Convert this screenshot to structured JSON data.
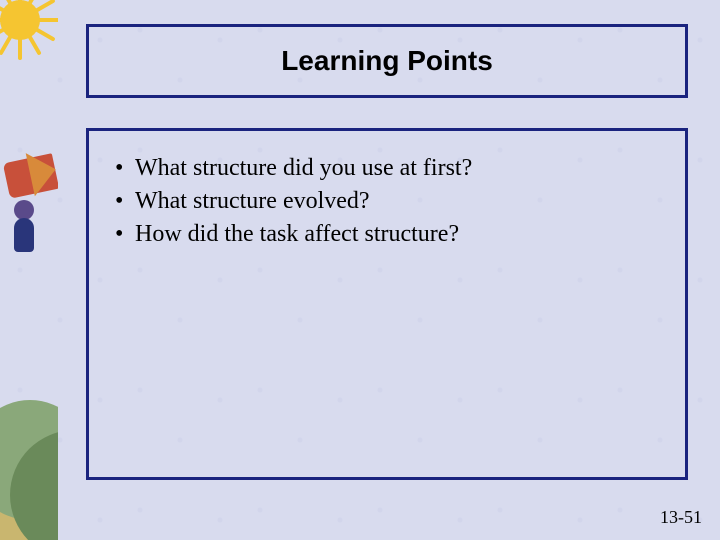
{
  "slide": {
    "title": "Learning Points",
    "bullets": [
      "What structure did you use at first?",
      "What structure evolved?",
      "How did the task affect structure?"
    ],
    "slide_number": "13-51"
  },
  "style": {
    "background_color": "#d8dbee",
    "title_box": {
      "border_color": "#1a237e",
      "title_color": "#000000",
      "title_fontsize": 28,
      "title_fontweight": "bold",
      "title_fontfamily": "Arial, Helvetica, sans-serif"
    },
    "body_box": {
      "border_color": "#1a237e",
      "bullet_color": "#000000",
      "bullet_fontsize": 24,
      "bullet_fontfamily": "Times New Roman, Times, serif"
    },
    "slide_number": {
      "color": "#000000",
      "fontsize": 18
    },
    "sidebar": {
      "sun_color": "#f5c531",
      "megaphone_color": "#c8503a",
      "megaphone_cone_color": "#d88a3a",
      "person_skin": "#5a4a8a",
      "person_body": "#29357a",
      "hill1_color": "#8aa87a",
      "hill2_color": "#6a8a5a",
      "ground_color": "#c9b66f"
    }
  }
}
